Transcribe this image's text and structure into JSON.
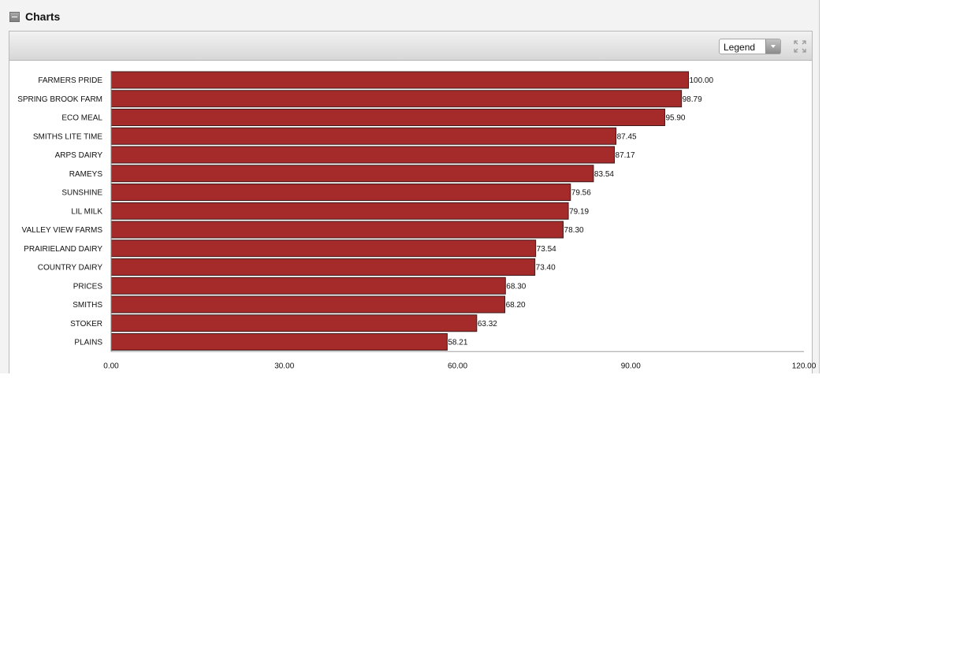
{
  "panel": {
    "title": "Charts"
  },
  "toolbar": {
    "legend_label": "Legend",
    "legend_icon": "chevron-down-icon",
    "expand_icon": "expand-icon"
  },
  "chart_data": {
    "type": "bar",
    "orientation": "horizontal",
    "categories": [
      "FARMERS PRIDE",
      "SPRING BROOK FARM",
      "ECO MEAL",
      "SMITHS LITE TIME",
      "ARPS DAIRY",
      "RAMEYS",
      "SUNSHINE",
      "LIL MILK",
      "VALLEY VIEW FARMS",
      "PRAIRIELAND DAIRY",
      "COUNTRY DAIRY",
      "PRICES",
      "SMITHS",
      "STOKER",
      "PLAINS"
    ],
    "values": [
      100.0,
      98.79,
      95.9,
      87.45,
      87.17,
      83.54,
      79.56,
      79.19,
      78.3,
      73.54,
      73.4,
      68.3,
      68.2,
      63.32,
      58.21
    ],
    "value_labels": [
      "100.00",
      "98.79",
      "95.90",
      "87.45",
      "87.17",
      "83.54",
      "79.56",
      "79.19",
      "78.30",
      "73.54",
      "73.40",
      "68.30",
      "68.20",
      "63.32",
      "58.21"
    ],
    "xlim": [
      0,
      120
    ],
    "x_ticks": [
      0,
      30,
      60,
      90,
      120
    ],
    "x_tick_labels": [
      "0.00",
      "30.00",
      "60.00",
      "90.00",
      "120.00"
    ],
    "bar_color": "#a52a2a",
    "bar_edge_color": "#3d1a1a",
    "grid": false,
    "title": "",
    "xlabel": "",
    "ylabel": ""
  }
}
